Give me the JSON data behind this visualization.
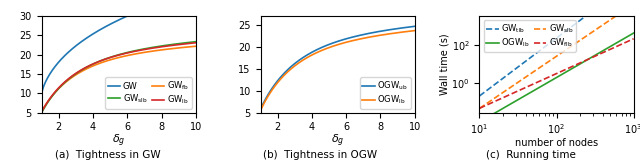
{
  "panel_a": {
    "title": "(a)  Tightness in GW",
    "xlabel": "$\\delta_g$",
    "xlim": [
      1,
      10
    ],
    "ylim": [
      5,
      30
    ],
    "yticks": [
      5,
      10,
      15,
      20,
      25,
      30
    ],
    "xticks": [
      2,
      4,
      6,
      8,
      10
    ],
    "GW_color": "#1f77b4",
    "GWfb_color": "#ff7f0e",
    "GWslb_color": "#2ca02c",
    "GWlb_color": "#d62728"
  },
  "panel_b": {
    "title": "(b)  Tightness in OGW",
    "xlabel": "$\\delta_g$",
    "xlim": [
      1,
      10
    ],
    "ylim": [
      5,
      27
    ],
    "yticks": [
      5,
      10,
      15,
      20,
      25
    ],
    "xticks": [
      2,
      4,
      6,
      8,
      10
    ],
    "OGWub_color": "#1f77b4",
    "OGWlb_color": "#ff7f0e"
  },
  "panel_c": {
    "title": "(c)  Running time",
    "xlabel": "number of nodes",
    "ylabel": "Wall time (s)",
    "xlim": [
      10,
      1000
    ],
    "ylim": [
      0.03,
      3000
    ],
    "GWtlb_color": "#1f77b4",
    "GWslb_color": "#ff7f0e",
    "OGWlb_color": "#2ca02c",
    "GWflb_color": "#d62728"
  },
  "caption_a": "(a)  Tightness in GW",
  "caption_b": "(b)  Tightness in OGW",
  "caption_c": "(c)  Running time"
}
